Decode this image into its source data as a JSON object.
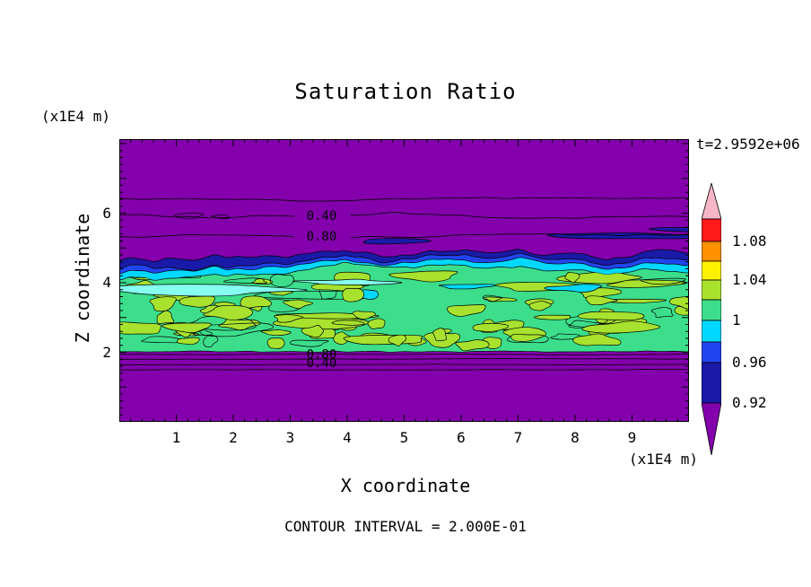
{
  "chart_data": {
    "type": "heatmap",
    "variant": "filled-contour-plot",
    "title": "Saturation Ratio",
    "timestamp": "t=2.9592e+06",
    "xlabel": "X coordinate",
    "ylabel": "Z coordinate",
    "x_unit_label": "(x1E4 m)",
    "z_unit_label": "(x1E4 m)",
    "contour_note": "CONTOUR INTERVAL = 2.000E-01",
    "x_axis": {
      "min": 0,
      "max": 10,
      "major_ticks": [
        1,
        2,
        3,
        4,
        5,
        6,
        7,
        8,
        9
      ],
      "minor_step": 0.2
    },
    "z_axis": {
      "min": 0,
      "max": 8.13,
      "major_ticks": [
        2,
        4,
        6
      ],
      "minor_step": 0.2
    },
    "colors": {
      "plot_background": "#8400AD",
      "navy": "#1A1AA8",
      "blue": "#2244EE",
      "cyan": "#00D8FF",
      "light_cyan": "#86FFF0",
      "green": "#3CDE8C",
      "yellow_green": "#A8E22E",
      "contour_line": "#000000",
      "text": "#000000",
      "frame": "#000000"
    },
    "field_bands": {
      "description": "Horizontally layered saturation-ratio field: purple (low ratio) above z~5.1 and below z~2.0; thin navy/blue/cyan transition bands at z~4.4-5.1; mottled green (ratio ~1) with yellow-green patches between z~2.0 and z~4.4; thin horizontal contour lines in the purple zones.",
      "green_top_z": 4.35,
      "green_top_roughness": [
        0.22,
        0.1,
        0.05
      ],
      "green_bottom_z": 2.02,
      "cyan_band_thickness": 0.16,
      "blue_band_thickness": 0.12,
      "navy_band_thickness": 0.22
    },
    "contour_lines": [
      {
        "z": 6.4,
        "amplitude": 0.05
      },
      {
        "z": 5.94,
        "amplitude": 0.07,
        "label_gap": true
      },
      {
        "z": 5.34,
        "amplitude": 0.07,
        "label_gap": true
      },
      {
        "z": 1.94,
        "amplitude": 0.012
      },
      {
        "z": 1.81,
        "amplitude": 0.012
      },
      {
        "z": 1.65,
        "amplitude": 0.012
      },
      {
        "z": 1.5,
        "amplitude": 0.012
      }
    ],
    "contour_labels": [
      {
        "text": "0.40",
        "x": 3.55,
        "z": 5.94
      },
      {
        "text": "0.80",
        "x": 3.55,
        "z": 5.34
      },
      {
        "text": "0.80",
        "x": 3.55,
        "z": 1.95
      },
      {
        "text": "0.40",
        "x": 3.55,
        "z": 1.7
      }
    ],
    "colorbar": {
      "segments": [
        {
          "color": "#F7B6C8",
          "h": 40,
          "shape": "arrow-up"
        },
        {
          "color": "#FF1A1A",
          "h": 25
        },
        {
          "color": "#FF9000",
          "h": 22
        },
        {
          "color": "#FFF200",
          "h": 21
        },
        {
          "color": "#A8E22E",
          "h": 22
        },
        {
          "color": "#3CDE8C",
          "h": 23
        },
        {
          "color": "#00D8FF",
          "h": 24
        },
        {
          "color": "#2244EE",
          "h": 23
        },
        {
          "color": "#1A1AA8",
          "h": 45
        },
        {
          "color": "#8400AD",
          "h": 58,
          "shape": "arrow-down"
        }
      ],
      "ticks": [
        {
          "label": "1.08",
          "offset": 65
        },
        {
          "label": "1.04",
          "offset": 108
        },
        {
          "label": "1",
          "offset": 153
        },
        {
          "label": "0.96",
          "offset": 200
        },
        {
          "label": "0.92",
          "offset": 245
        }
      ]
    }
  }
}
